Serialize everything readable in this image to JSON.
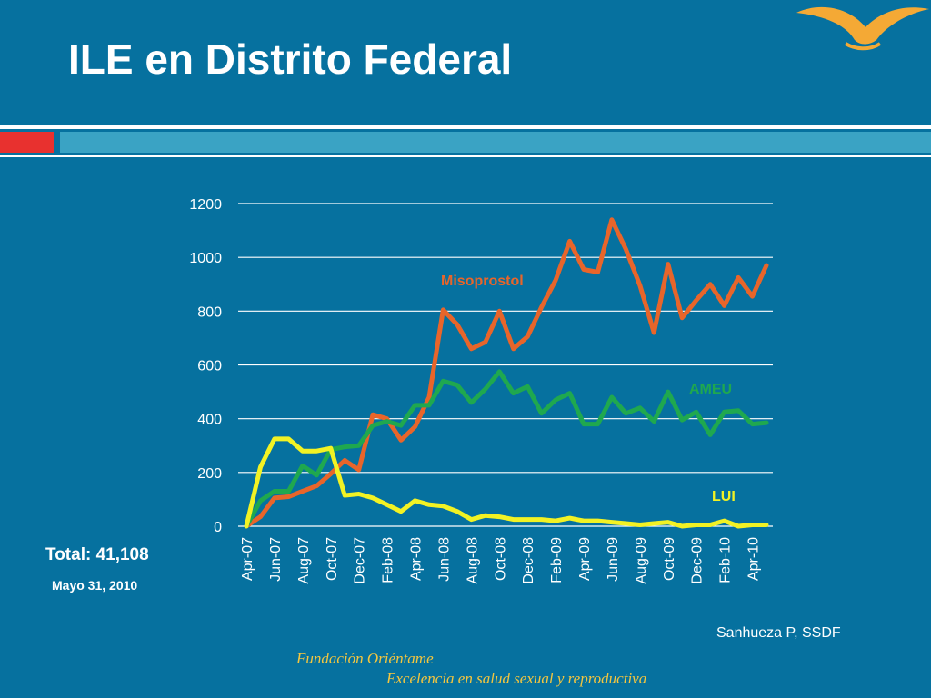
{
  "slide": {
    "title": "ILE en Distrito Federal",
    "total": "Total: 41,108",
    "date": "Mayo 31,  2010",
    "source": "Sanhueza P, SSDF",
    "org_name": "Fundación Oriéntame",
    "org_tagline": "Excelencia en salud sexual y reproductiva"
  },
  "colors": {
    "background": "#06719f",
    "accent_red": "#e8312f",
    "accent_teal": "#3aa3c4",
    "logo": "#f4a935",
    "footer_text": "#f4c63f"
  },
  "icons": {
    "logo": "seagull-logo"
  },
  "chart_data": {
    "type": "line",
    "title": "",
    "xlabel": "",
    "ylabel": "",
    "ylim": [
      0,
      1200
    ],
    "yticks": [
      0,
      200,
      400,
      600,
      800,
      1000,
      1200
    ],
    "grid": "horizontal",
    "legend": "inline labels next to lines",
    "x": [
      "Apr-07",
      "May-07",
      "Jun-07",
      "Jul-07",
      "Aug-07",
      "Sep-07",
      "Oct-07",
      "Nov-07",
      "Dec-07",
      "Jan-08",
      "Feb-08",
      "Mar-08",
      "Apr-08",
      "May-08",
      "Jun-08",
      "Jul-08",
      "Aug-08",
      "Sep-08",
      "Oct-08",
      "Nov-08",
      "Dec-08",
      "Jan-09",
      "Feb-09",
      "Mar-09",
      "Apr-09",
      "May-09",
      "Jun-09",
      "Jul-09",
      "Aug-09",
      "Sep-09",
      "Oct-09",
      "Nov-09",
      "Dec-09",
      "Jan-10",
      "Feb-10",
      "Mar-10",
      "Apr-10",
      "May-10"
    ],
    "xtick_labels": [
      "Apr-07",
      "Jun-07",
      "Aug-07",
      "Oct-07",
      "Dec-07",
      "Feb-08",
      "Apr-08",
      "Jun-08",
      "Aug-08",
      "Oct-08",
      "Dec-08",
      "Feb-09",
      "Apr-09",
      "Jun-09",
      "Aug-09",
      "Oct-09",
      "Dec-09",
      "Feb-10",
      "Apr-10"
    ],
    "series": [
      {
        "name": "Misoprostol",
        "color": "#e8652a",
        "values": [
          0,
          35,
          105,
          110,
          130,
          150,
          195,
          245,
          210,
          415,
          400,
          320,
          370,
          480,
          805,
          750,
          660,
          685,
          800,
          660,
          705,
          815,
          915,
          1060,
          955,
          945,
          1140,
          1030,
          895,
          720,
          975,
          775,
          840,
          900,
          820,
          925,
          855,
          970
        ]
      },
      {
        "name": "AMEU",
        "color": "#1fa84f",
        "values": [
          0,
          95,
          130,
          130,
          225,
          190,
          285,
          295,
          300,
          375,
          390,
          375,
          450,
          450,
          540,
          525,
          460,
          510,
          575,
          495,
          520,
          420,
          470,
          495,
          380,
          380,
          480,
          420,
          440,
          390,
          500,
          395,
          425,
          340,
          425,
          430,
          380,
          385
        ]
      },
      {
        "name": "LUI",
        "color": "#f2f224",
        "values": [
          0,
          220,
          325,
          325,
          280,
          280,
          290,
          115,
          120,
          105,
          80,
          55,
          95,
          80,
          75,
          55,
          25,
          40,
          35,
          25,
          25,
          25,
          20,
          30,
          20,
          20,
          15,
          10,
          5,
          10,
          15,
          0,
          5,
          5,
          20,
          0,
          5,
          5
        ]
      }
    ]
  }
}
